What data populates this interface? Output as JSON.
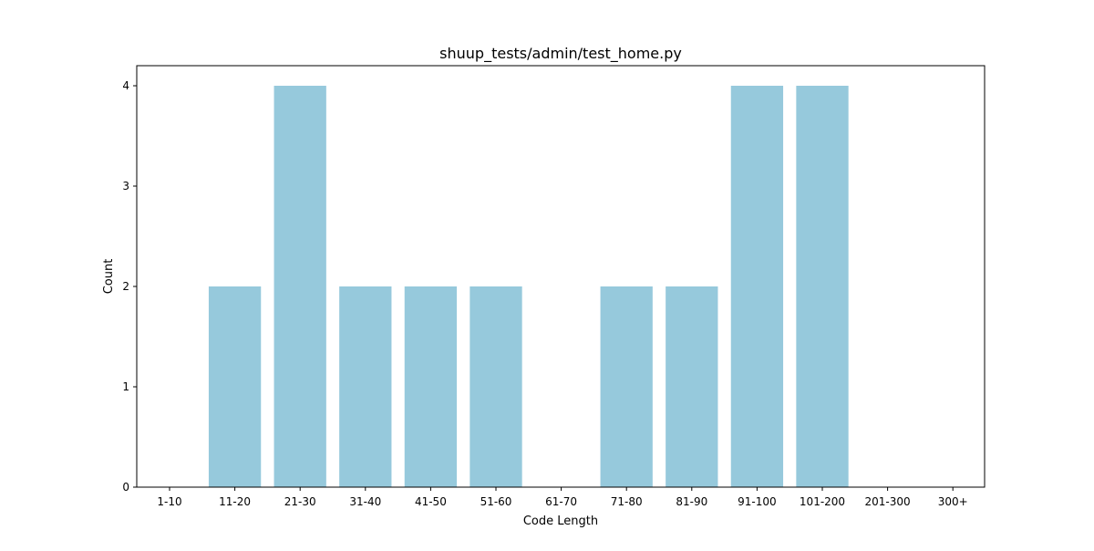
{
  "chart_data": {
    "type": "bar",
    "title": "shuup_tests/admin/test_home.py",
    "xlabel": "Code Length",
    "ylabel": "Count",
    "categories": [
      "1-10",
      "11-20",
      "21-30",
      "31-40",
      "41-50",
      "51-60",
      "61-70",
      "71-80",
      "81-90",
      "91-100",
      "101-200",
      "201-300",
      "300+"
    ],
    "values": [
      0,
      2,
      4,
      2,
      2,
      2,
      0,
      2,
      2,
      4,
      4,
      0,
      0
    ],
    "ylim": [
      0,
      4.2
    ],
    "yticks": [
      0,
      1,
      2,
      3,
      4
    ],
    "bar_color": "#96c9dc",
    "grid": false,
    "legend": "none"
  }
}
